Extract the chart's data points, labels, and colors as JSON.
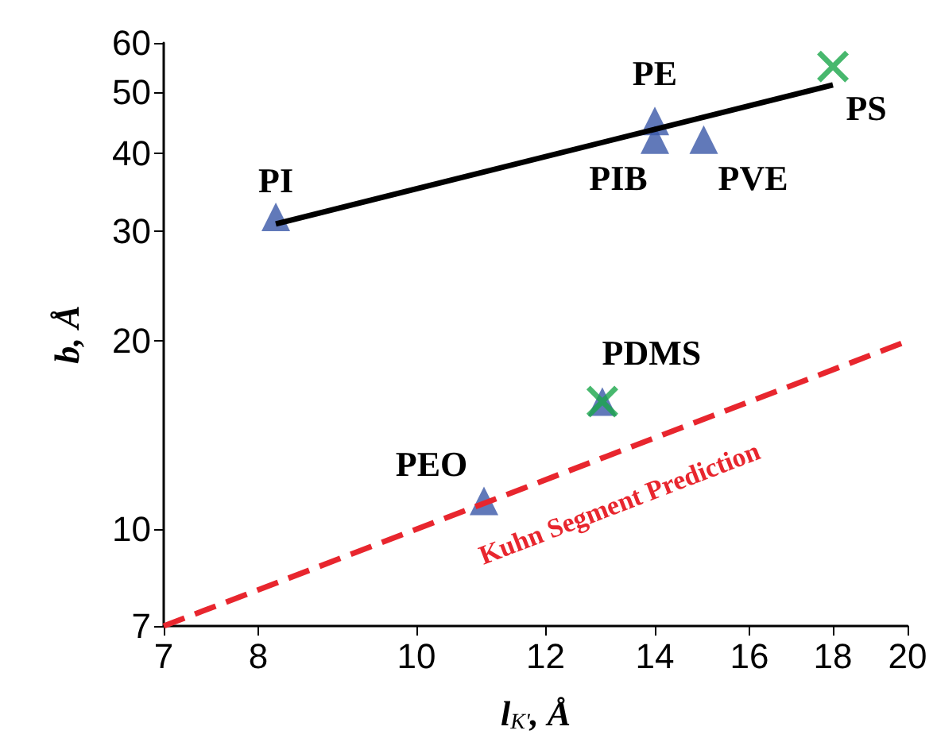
{
  "chart_data": {
    "type": "scatter",
    "xlabel": "l$_{K'}$, Å",
    "ylabel": "b, Å",
    "log": "xy",
    "grid": false,
    "xlim": [
      7,
      20
    ],
    "ylim": [
      7,
      60
    ],
    "xticks": [
      7,
      8,
      10,
      12,
      14,
      16,
      18,
      20
    ],
    "yticks": [
      7,
      10,
      20,
      30,
      40,
      50,
      60
    ],
    "series": [
      {
        "type": "line",
        "name": "Kuhn Segment Prediction",
        "color": "#e8262e",
        "line_style": "dashed",
        "marker": "none",
        "x": [
          7,
          20
        ],
        "values": [
          7,
          20
        ]
      },
      {
        "type": "line",
        "color": "#000000",
        "line_style": "solid",
        "marker": "none",
        "x": [
          8.2,
          18
        ],
        "values": [
          30.8,
          51.4
        ]
      },
      {
        "color": "#3a57a7",
        "marker": "triangle",
        "x": [
          8.2,
          14,
          14,
          15,
          13,
          11
        ],
        "values": [
          31.6,
          45,
          42,
          42,
          16,
          11.1
        ]
      },
      {
        "color": "#1aa64a",
        "marker": "cross",
        "x": [
          18,
          13
        ],
        "values": [
          55,
          16
        ]
      }
    ],
    "annotations": [
      {
        "text": "PI",
        "x": 8.2,
        "y": 31.6
      },
      {
        "text": "PE",
        "x": 14,
        "y": 45
      },
      {
        "text": "PIB",
        "x": 14,
        "y": 42
      },
      {
        "text": "PVE",
        "x": 15,
        "y": 42
      },
      {
        "text": "PS",
        "x": 18,
        "y": 55
      },
      {
        "text": "PDMS",
        "x": 13,
        "y": 16
      },
      {
        "text": "PEO",
        "x": 11,
        "y": 11.1
      }
    ]
  }
}
